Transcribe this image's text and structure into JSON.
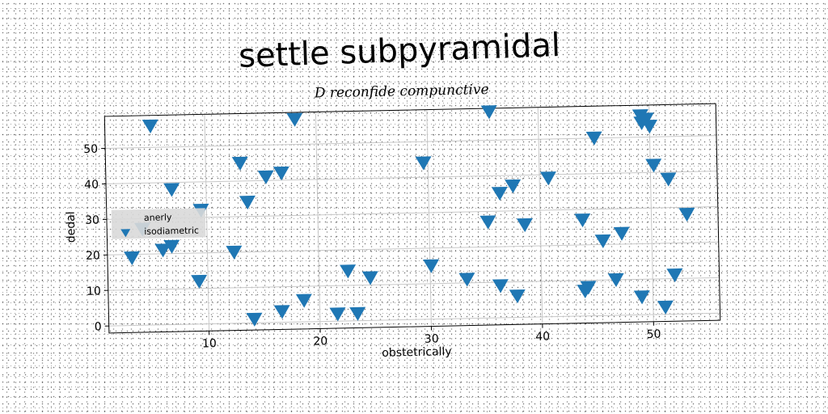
{
  "chart_data": {
    "type": "scatter",
    "title": "settle subpyramidal",
    "subtitle": "D reconfide compunctive",
    "xlabel": "obstetrically",
    "ylabel": "dedal",
    "xlim": [
      1,
      56
    ],
    "ylim": [
      -2,
      59
    ],
    "xticks": [
      10,
      20,
      30,
      40,
      50
    ],
    "yticks": [
      0,
      10,
      20,
      30,
      40,
      50
    ],
    "grid": true,
    "legend_position": "center-left",
    "series": [
      {
        "name": "anerly",
        "color": "#1f77b4",
        "marker": "none",
        "x": [],
        "y": []
      },
      {
        "name": "isodiametric",
        "color": "#1f77b4",
        "marker": "triangle-down",
        "x": [
          3.2,
          4.2,
          5.1,
          6.0,
          6.8,
          6.9,
          9.2,
          9.5,
          12.4,
          13.1,
          13.7,
          14.1,
          15.4,
          16.6,
          16.8,
          18.1,
          18.6,
          21.6,
          22.6,
          23.4,
          24.6,
          29.6,
          30.1,
          33.3,
          35.3,
          35.6,
          36.3,
          36.4,
          37.6,
          37.8,
          38.6,
          40.8,
          43.8,
          43.9,
          44.2,
          45.0,
          45.6,
          46.7,
          47.3,
          49.0,
          49.2,
          49.3,
          49.7,
          50.0,
          50.3,
          51.1,
          51.6,
          52.0,
          53.2
        ],
        "y": [
          19,
          27,
          56,
          21,
          22,
          38,
          12,
          32,
          20,
          45,
          34,
          1,
          41,
          3,
          42,
          57,
          6,
          2,
          14,
          2,
          12,
          44,
          15,
          11,
          27,
          58,
          9,
          35,
          37,
          6,
          26,
          39,
          27,
          7,
          8,
          50,
          21,
          10,
          23,
          5,
          56,
          54,
          55,
          53,
          42,
          2,
          38,
          11,
          28
        ]
      }
    ]
  }
}
